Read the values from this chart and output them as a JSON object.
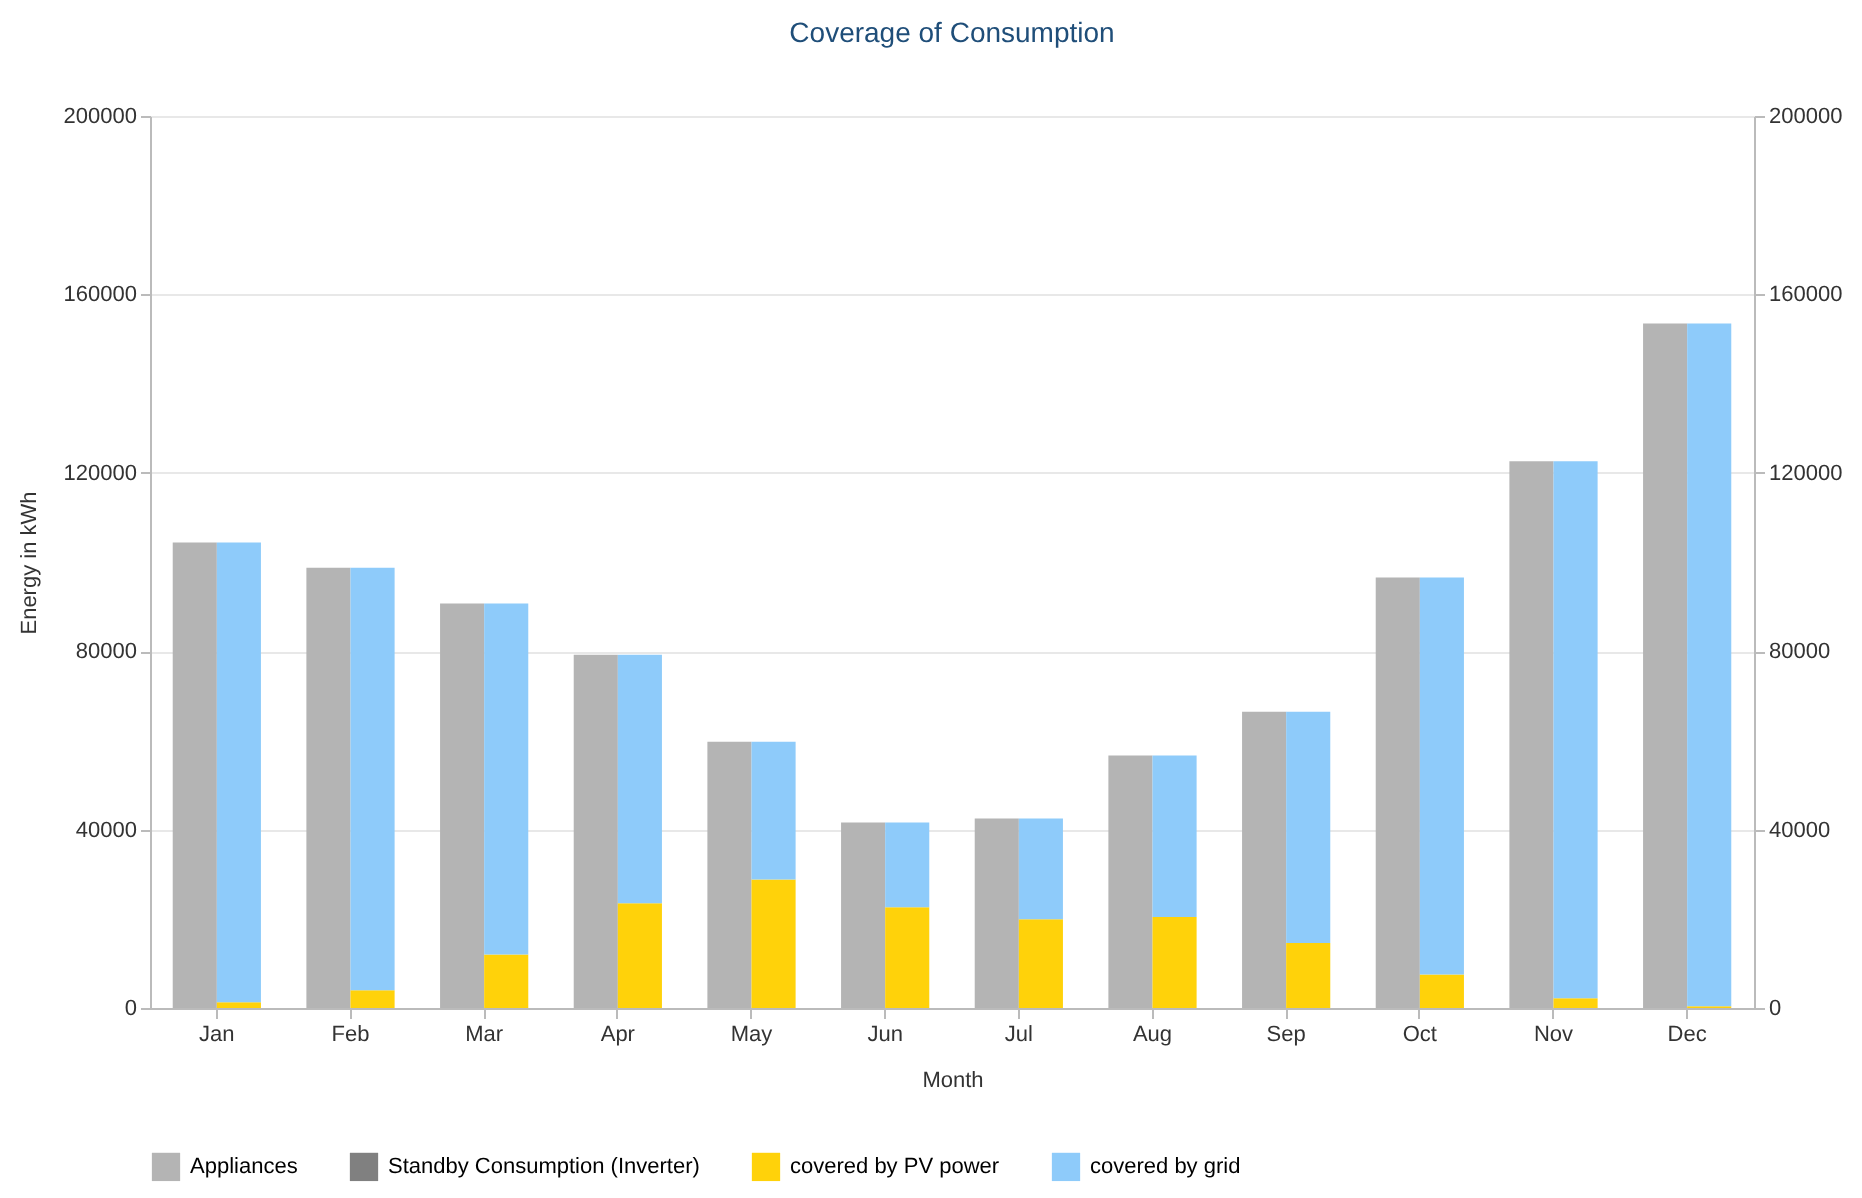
{
  "chart_data": {
    "type": "bar",
    "title": "Coverage of Consumption",
    "xlabel": "Month",
    "ylabel": "Energy in kWh",
    "stacked": true,
    "categories": [
      "Jan",
      "Feb",
      "Mar",
      "Apr",
      "May",
      "Jun",
      "Jul",
      "Aug",
      "Sep",
      "Oct",
      "Nov",
      "Dec"
    ],
    "series": [
      {
        "name": "Appliances",
        "color": "#b4b4b4",
        "values": [
          104400,
          98700,
          90700,
          79200,
          59700,
          41600,
          42500,
          56600,
          66400,
          96500,
          122600,
          153500
        ]
      },
      {
        "name": "Standby Consumption (Inverter)",
        "color": "#808080",
        "values": [
          null,
          null,
          null,
          null,
          null,
          null,
          null,
          null,
          null,
          null,
          null,
          null
        ]
      },
      {
        "name": "covered by PV power",
        "color": "#ffd20a",
        "axis": "y2",
        "values": [
          1300,
          4000,
          12000,
          23500,
          28800,
          22600,
          19900,
          20400,
          14600,
          7500,
          2200,
          400
        ]
      },
      {
        "name": "covered by grid",
        "color": "#8ecbfa",
        "axis": "y2",
        "values": [
          103100,
          94700,
          78700,
          55700,
          30900,
          19000,
          22600,
          36200,
          51800,
          89000,
          120400,
          153100
        ]
      }
    ],
    "ylim": [
      0,
      200000
    ],
    "yticks": [
      0,
      40000,
      80000,
      120000,
      160000,
      200000
    ],
    "y2lim": [
      0,
      200000
    ],
    "y2ticks": [
      0,
      40000,
      80000,
      120000,
      160000,
      200000
    ],
    "grid": "y",
    "legend": "bottom"
  }
}
